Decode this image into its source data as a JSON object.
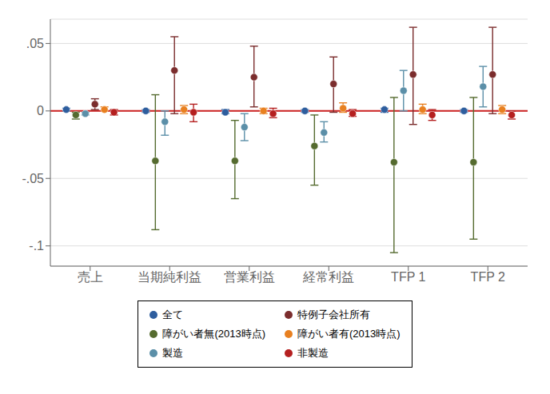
{
  "chart_data": {
    "type": "scatter",
    "categories": [
      "売上",
      "当期純利益",
      "営業利益",
      "経常利益",
      "TFP 1",
      "TFP 2"
    ],
    "ylim": [
      -0.115,
      0.068
    ],
    "yticks": [
      {
        "value": 0.05,
        "label": ".05"
      },
      0,
      {
        "value": -0.05,
        "label": "-.05"
      },
      {
        "value": -0.1,
        "label": "-.1"
      }
    ],
    "grid": true,
    "legend": "bottom",
    "hline": {
      "value": 0,
      "color": "#cc2222"
    },
    "series": [
      {
        "name": "全て",
        "color": "#2e5e9e",
        "values": [
          0.001,
          0.0,
          -0.001,
          0.0,
          0.001,
          0.0
        ],
        "ylow": [
          0.0,
          -0.001,
          -0.002,
          -0.001,
          -0.001,
          -0.001
        ],
        "yhigh": [
          0.002,
          0.001,
          0.001,
          0.001,
          0.002,
          0.001
        ]
      },
      {
        "name": "障がい者無(2013時点)",
        "color": "#556b2f",
        "values": [
          -0.003,
          -0.037,
          -0.037,
          -0.026,
          -0.038,
          -0.038
        ],
        "ylow": [
          -0.006,
          -0.088,
          -0.065,
          -0.055,
          -0.105,
          -0.095
        ],
        "yhigh": [
          -0.001,
          0.012,
          -0.007,
          -0.003,
          0.01,
          0.01
        ]
      },
      {
        "name": "製造",
        "color": "#5b8fa8",
        "values": [
          -0.002,
          -0.008,
          -0.012,
          -0.016,
          0.015,
          0.018
        ],
        "ylow": [
          -0.003,
          -0.018,
          -0.022,
          -0.023,
          0.0,
          0.003
        ],
        "yhigh": [
          -0.001,
          0.0,
          -0.002,
          -0.008,
          0.03,
          0.033
        ]
      },
      {
        "name": "特例子会社所有",
        "color": "#7b2d2d",
        "values": [
          0.005,
          0.03,
          0.025,
          0.02,
          0.027,
          0.027
        ],
        "ylow": [
          0.001,
          -0.002,
          0.003,
          -0.001,
          -0.01,
          -0.002
        ],
        "yhigh": [
          0.009,
          0.055,
          0.048,
          0.04,
          0.062,
          0.062
        ]
      },
      {
        "name": "障がい者有(2013時点)",
        "color": "#e88020",
        "values": [
          0.001,
          0.001,
          0.0,
          0.002,
          0.001,
          0.001
        ],
        "ylow": [
          0.0,
          -0.002,
          -0.002,
          -0.001,
          -0.002,
          -0.002
        ],
        "yhigh": [
          0.003,
          0.004,
          0.002,
          0.006,
          0.005,
          0.004
        ]
      },
      {
        "name": "非製造",
        "color": "#b52020",
        "values": [
          -0.001,
          -0.001,
          -0.002,
          -0.002,
          -0.003,
          -0.003
        ],
        "ylow": [
          -0.003,
          -0.008,
          -0.005,
          -0.004,
          -0.007,
          -0.006
        ],
        "yhigh": [
          0.001,
          0.005,
          0.002,
          0.001,
          0.001,
          0.0
        ]
      }
    ]
  }
}
